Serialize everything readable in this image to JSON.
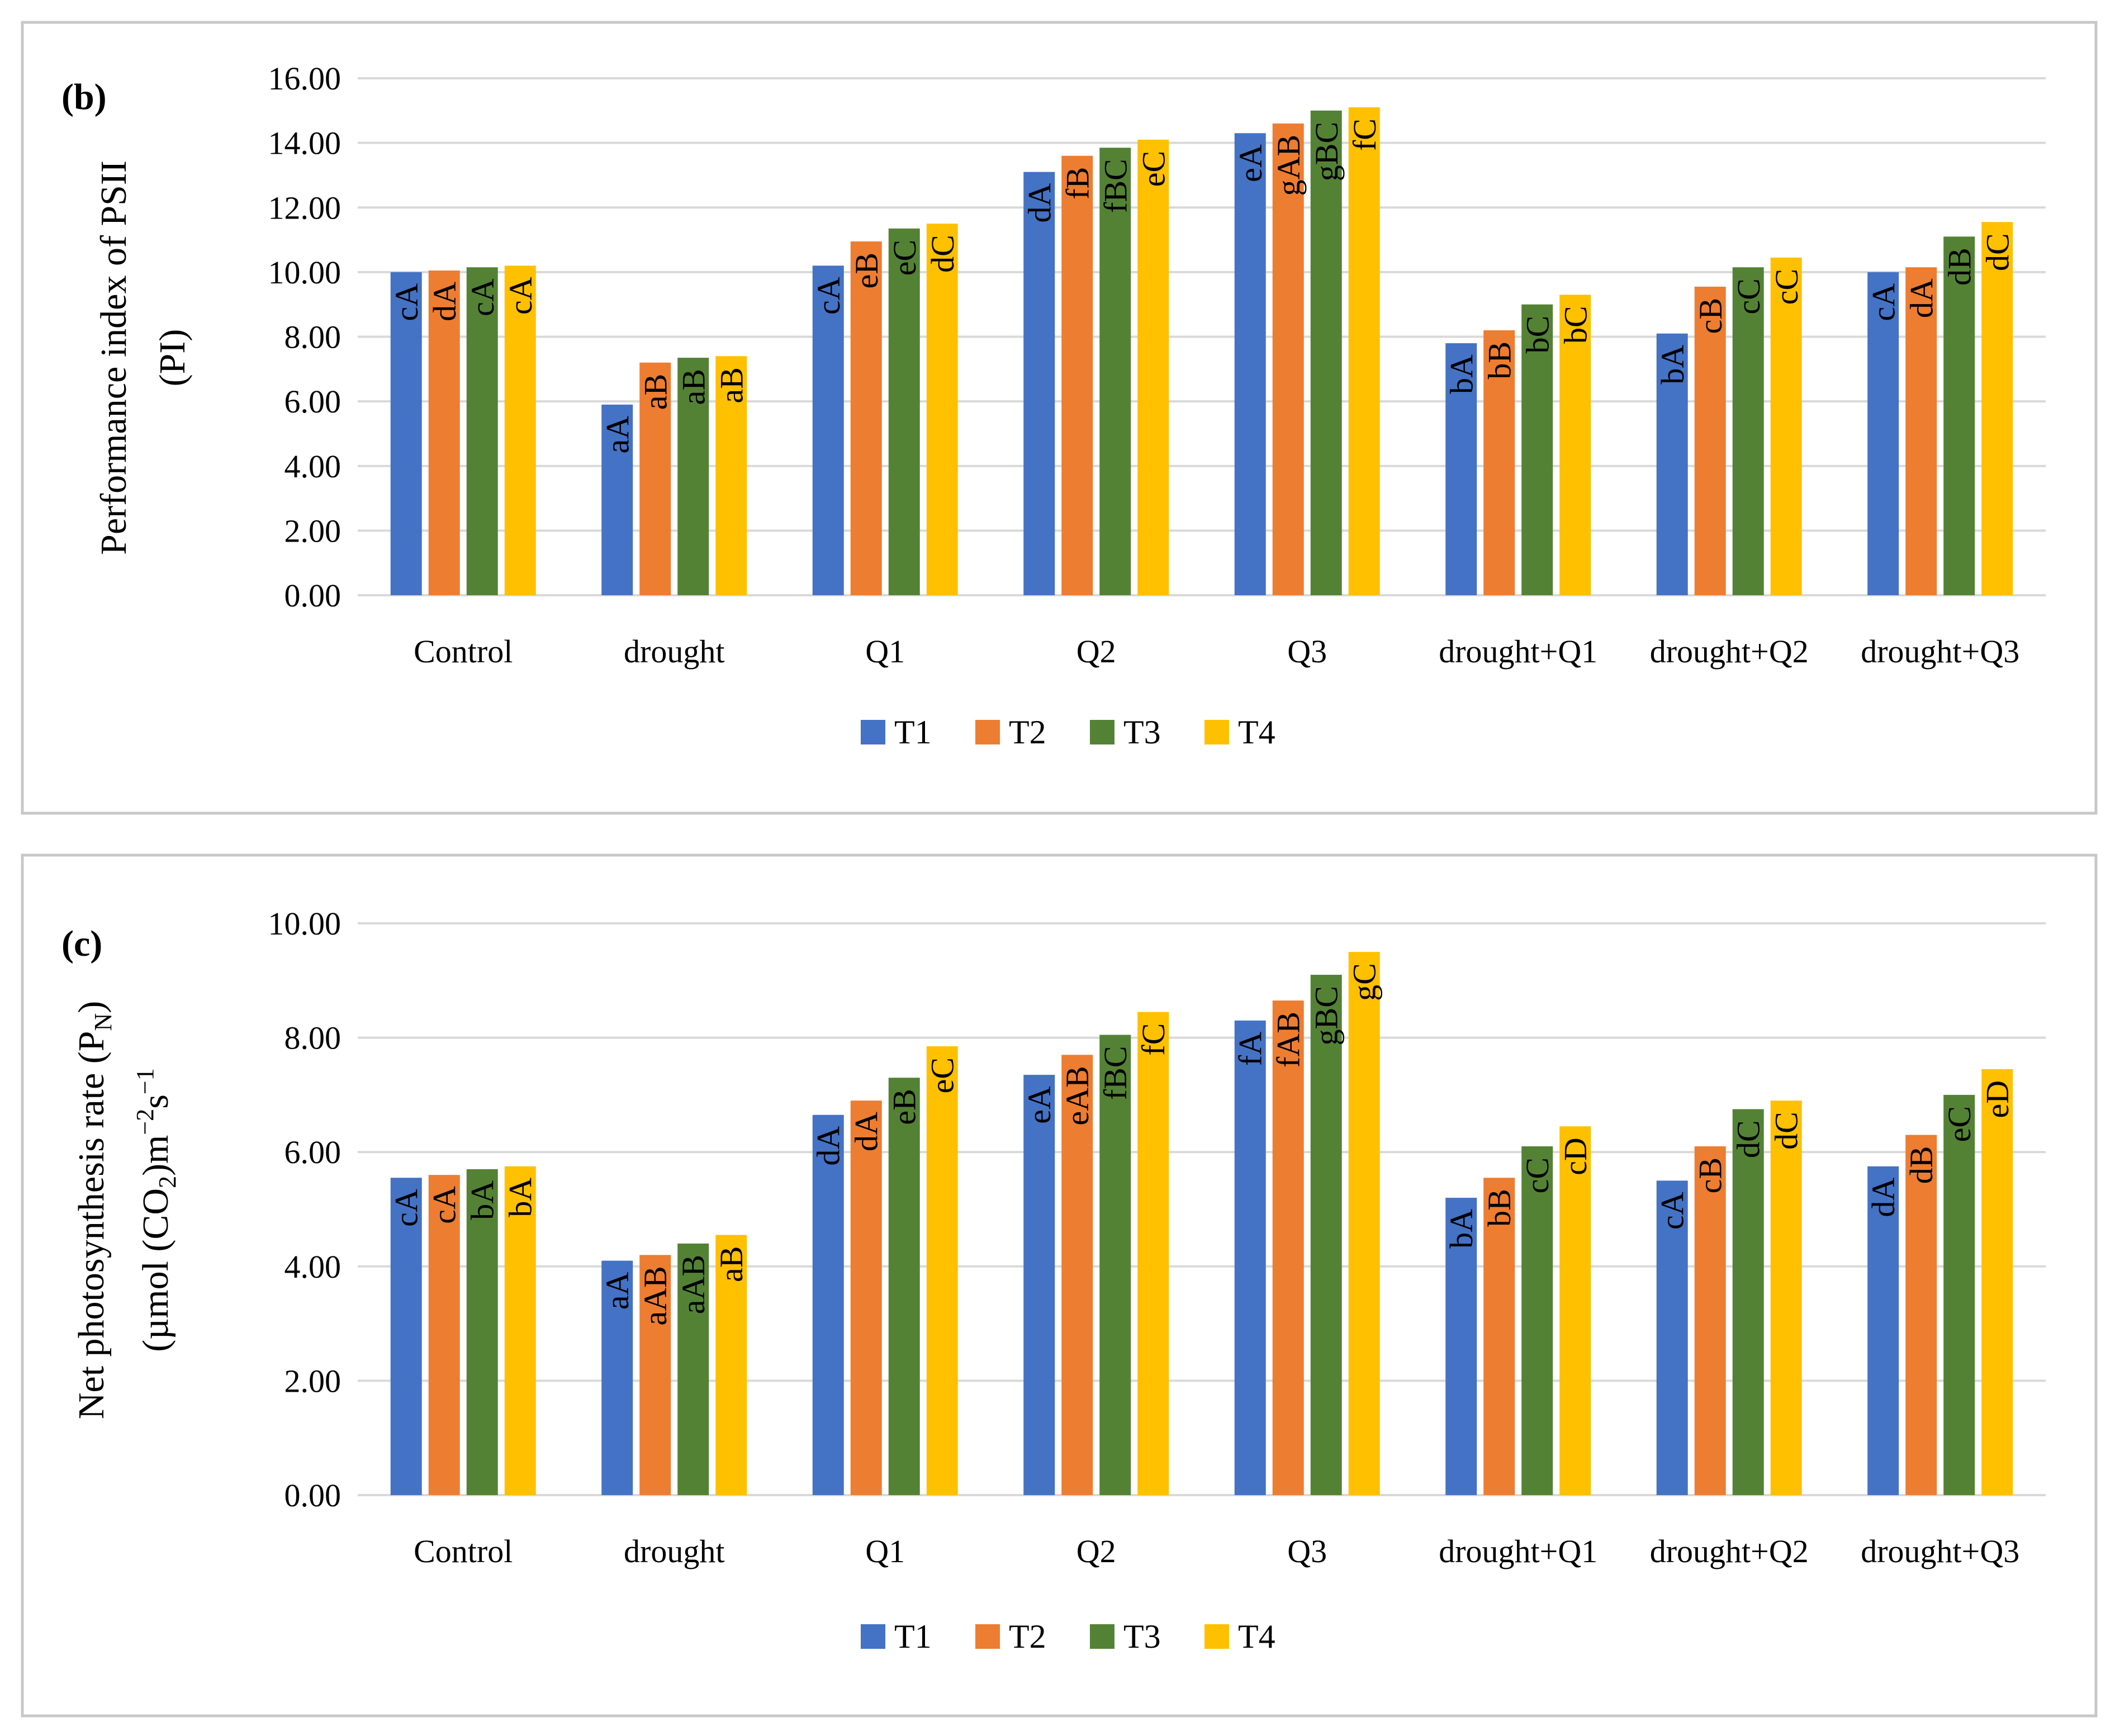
{
  "colors": {
    "T1": "#4472c4",
    "T2": "#ed7d31",
    "T3": "#548235",
    "T4": "#ffc000"
  },
  "chart_data": [
    {
      "type": "bar",
      "panel_label": "(b)",
      "ylabel_lines": [
        "Performance index of PSII",
        "(PI)"
      ],
      "categories": [
        "Control",
        "drought",
        "Q1",
        "Q2",
        "Q3",
        "drought+Q1",
        "drought+Q2",
        "drought+Q3"
      ],
      "ylim": [
        0,
        16
      ],
      "yticks": [
        "0.00",
        "2.00",
        "4.00",
        "6.00",
        "8.00",
        "10.00",
        "12.00",
        "14.00",
        "16.00"
      ],
      "grid": true,
      "legend_position": "bottom",
      "series": [
        {
          "name": "T1",
          "values": [
            10.0,
            5.9,
            10.2,
            13.1,
            14.3,
            7.8,
            8.1,
            10.0
          ],
          "labels": [
            "cA",
            "aA",
            "cA",
            "dA",
            "eA",
            "bA",
            "bA",
            "cA"
          ]
        },
        {
          "name": "T2",
          "values": [
            10.05,
            7.2,
            10.95,
            13.6,
            14.6,
            8.2,
            9.55,
            10.15
          ],
          "labels": [
            "dA",
            "aB",
            "eB",
            "fB",
            "gAB",
            "bB",
            "cB",
            "dA"
          ]
        },
        {
          "name": "T3",
          "values": [
            10.15,
            7.35,
            11.35,
            13.85,
            15.0,
            9.0,
            10.15,
            11.1
          ],
          "labels": [
            "cA",
            "aB",
            "eC",
            "fBC",
            "gBC",
            "bC",
            "cC",
            "dB"
          ]
        },
        {
          "name": "T4",
          "values": [
            10.2,
            7.4,
            11.5,
            14.1,
            15.1,
            9.3,
            10.45,
            11.55
          ],
          "labels": [
            "cA",
            "aB",
            "dC",
            "eC",
            "fC",
            "bC",
            "cC",
            "dC"
          ]
        }
      ]
    },
    {
      "type": "bar",
      "panel_label": "(c)",
      "ylabel_lines": [
        "Net photosynthesis rate (P",
        "N",
        ")",
        "(µmol (CO",
        "2",
        ")m",
        "−2",
        "s",
        "−1"
      ],
      "categories": [
        "Control",
        "drought",
        "Q1",
        "Q2",
        "Q3",
        "drought+Q1",
        "drought+Q2",
        "drought+Q3"
      ],
      "ylim": [
        0,
        10
      ],
      "yticks": [
        "0.00",
        "2.00",
        "4.00",
        "6.00",
        "8.00",
        "10.00"
      ],
      "grid": true,
      "legend_position": "bottom",
      "series": [
        {
          "name": "T1",
          "values": [
            5.55,
            4.1,
            6.65,
            7.35,
            8.3,
            5.2,
            5.5,
            5.75
          ],
          "labels": [
            "cA",
            "aA",
            "dA",
            "eA",
            "fA",
            "bA",
            "cA",
            "dA"
          ]
        },
        {
          "name": "T2",
          "values": [
            5.6,
            4.2,
            6.9,
            7.7,
            8.65,
            5.55,
            6.1,
            6.3
          ],
          "labels": [
            "cA",
            "aAB",
            "dA",
            "eAB",
            "fAB",
            "bB",
            "cB",
            "dB"
          ]
        },
        {
          "name": "T3",
          "values": [
            5.7,
            4.4,
            7.3,
            8.05,
            9.1,
            6.1,
            6.75,
            7.0
          ],
          "labels": [
            "bA",
            "aAB",
            "eB",
            "fBC",
            "gBC",
            "cC",
            "dC",
            "eC"
          ]
        },
        {
          "name": "T4",
          "values": [
            5.75,
            4.55,
            7.85,
            8.45,
            9.5,
            6.45,
            6.9,
            7.45
          ],
          "labels": [
            "bA",
            "aB",
            "eC",
            "fC",
            "gC",
            "cD",
            "dC",
            "eD"
          ]
        }
      ]
    }
  ]
}
